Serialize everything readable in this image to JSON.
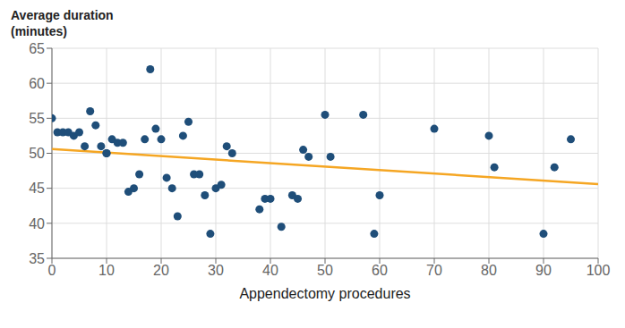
{
  "chart_data": {
    "type": "scatter",
    "xlabel": "Appendectomy procedures",
    "ylabel": [
      "Average duration",
      "(minutes)"
    ],
    "series": [
      {
        "type": "scatter",
        "color": "#1f4e79",
        "x": [
          0,
          1,
          2,
          3,
          4,
          5,
          6,
          7,
          8,
          9,
          10,
          10,
          11,
          12,
          13,
          14,
          15,
          16,
          17,
          18,
          19,
          20,
          21,
          22,
          23,
          24,
          25,
          26,
          27,
          28,
          29,
          30,
          31,
          32,
          33,
          38,
          39,
          40,
          42,
          44,
          45,
          46,
          47,
          50,
          51,
          57,
          59,
          60,
          70,
          80,
          81,
          90,
          92,
          95
        ],
        "values": [
          55,
          53,
          53,
          53,
          52.5,
          53,
          51,
          56,
          54,
          51,
          50,
          50,
          52,
          51.5,
          51.5,
          44.5,
          45,
          47,
          52,
          62,
          53.5,
          52,
          46.5,
          45,
          41,
          52.5,
          54.5,
          47,
          47,
          44,
          38.5,
          45,
          45.5,
          51,
          50,
          42,
          43.5,
          43.5,
          39.5,
          44,
          43.5,
          50.5,
          49.5,
          55.5,
          49.5,
          55.5,
          38.5,
          44,
          53.5,
          52.5,
          48,
          38.5,
          48,
          52
        ]
      },
      {
        "type": "line",
        "color": "#f5a623",
        "x": [
          0,
          100
        ],
        "values": [
          50.6,
          45.6
        ]
      }
    ],
    "xlim": [
      0,
      100
    ],
    "ylim": [
      35,
      65
    ],
    "xticks": [
      0,
      10,
      20,
      30,
      40,
      50,
      60,
      70,
      80,
      90,
      100
    ],
    "yticks": [
      35,
      40,
      45,
      50,
      55,
      60,
      65
    ],
    "grid": true
  }
}
